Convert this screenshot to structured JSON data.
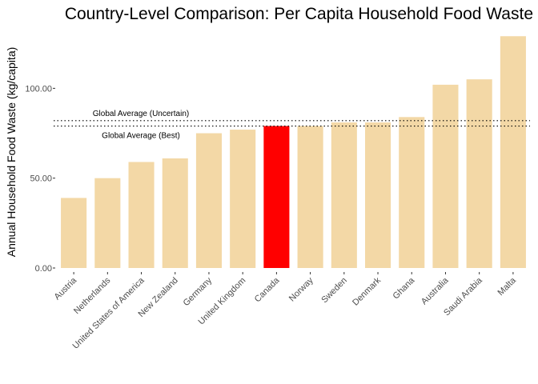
{
  "chart_data": {
    "type": "bar",
    "title": "Country-Level Comparison: Per Capita Household Food Waste",
    "xlabel": "",
    "ylabel": "Annual Household Food Waste (kg/capita)",
    "ylim": [
      0,
      130
    ],
    "yticks": [
      0,
      50,
      100
    ],
    "ytick_labels": [
      "0.00",
      "50.00",
      "100.00"
    ],
    "grid": false,
    "legend": "none",
    "categories": [
      "Austria",
      "Netherlands",
      "United States of America",
      "New Zealand",
      "Germany",
      "United Kingdom",
      "Canada",
      "Norway",
      "Sweden",
      "Denmark",
      "Ghana",
      "Australia",
      "Saudi Arabia",
      "Malta"
    ],
    "values": [
      39,
      50,
      59,
      61,
      75,
      77,
      79,
      79,
      81,
      81,
      84,
      102,
      105,
      129
    ],
    "colors": {
      "default_bar": "#f3d8a6",
      "highlight_bar": "#ff0000",
      "reference_line": "#000000"
    },
    "highlight": "Canada",
    "reference_lines": [
      {
        "label": "Global Average (Uncertain)",
        "value": 82,
        "style": "dotted"
      },
      {
        "label": "Global Average (Best)",
        "value": 79,
        "style": "dotted"
      }
    ]
  }
}
